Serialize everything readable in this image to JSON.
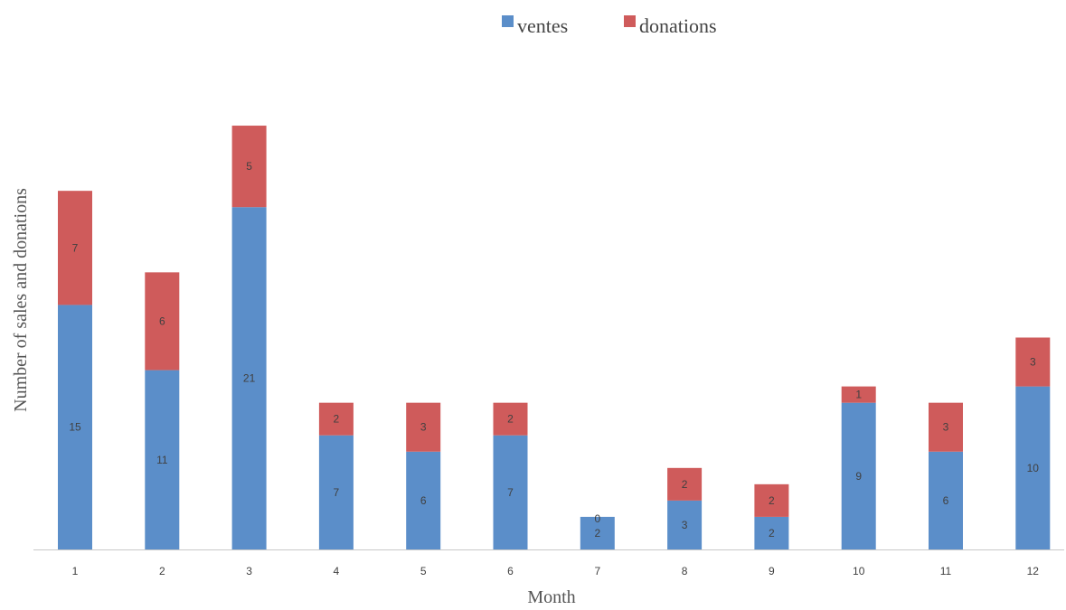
{
  "chart_data": {
    "type": "bar",
    "stacked": true,
    "title": "",
    "xlabel": "Month",
    "ylabel": "Number of sales and donations",
    "categories": [
      "1",
      "2",
      "3",
      "4",
      "5",
      "6",
      "7",
      "8",
      "9",
      "10",
      "11",
      "12"
    ],
    "series": [
      {
        "name": "ventes",
        "color": "#5b8ec9",
        "values": [
          15,
          11,
          21,
          7,
          6,
          7,
          2,
          3,
          2,
          9,
          6,
          10
        ]
      },
      {
        "name": "donations",
        "color": "#cf5b5b",
        "values": [
          7,
          6,
          5,
          2,
          3,
          2,
          0,
          2,
          2,
          1,
          3,
          3
        ]
      }
    ],
    "legend_position": "top",
    "grid": false,
    "data_labels": true
  }
}
